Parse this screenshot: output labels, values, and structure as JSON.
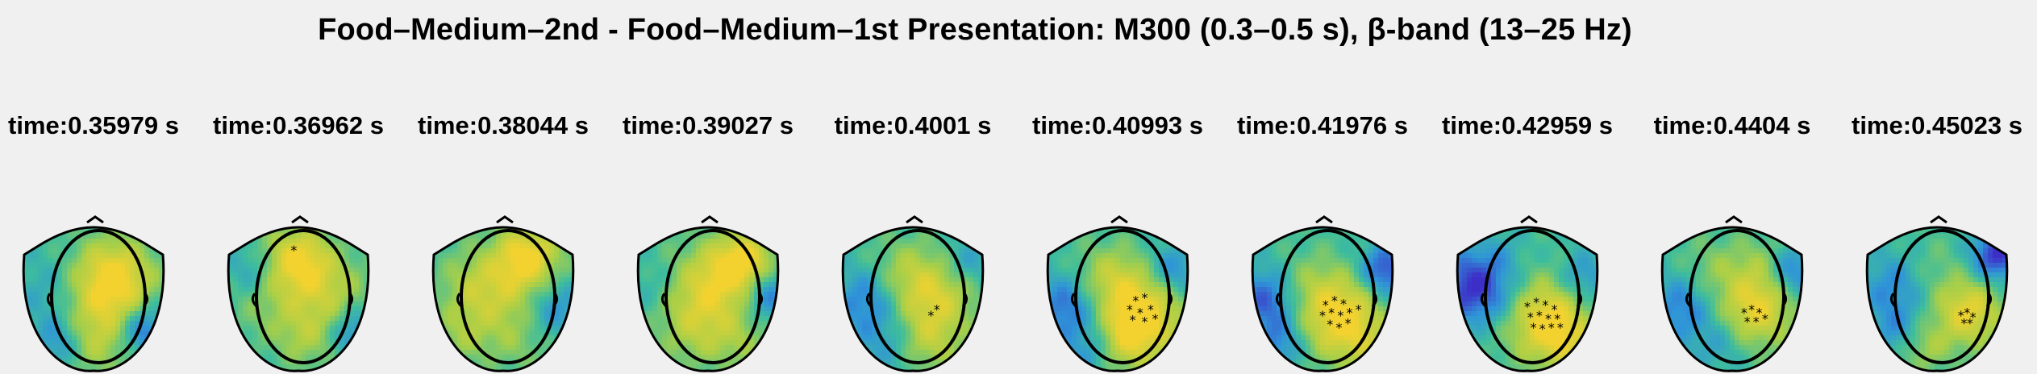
{
  "figure": {
    "title": "Food–Medium–2nd - Food–Medium–1st Presentation: M300 (0.3–0.5 s), β-band (13–25 Hz)"
  },
  "colors": {
    "background": "#f0f0f0",
    "colormap_low": "#3d2ec8",
    "colormap_mid_low": "#2f95d8",
    "colormap_mid": "#3ebd9c",
    "colormap_mid_high": "#a8cf48",
    "colormap_high": "#f3d22f",
    "outline": "#000000"
  },
  "panels": [
    {
      "label": "time:0.35979 s",
      "blobs": [
        [
          0.62,
          0.32,
          0.8,
          0.18
        ],
        [
          0.55,
          0.55,
          0.6,
          0.22
        ],
        [
          0.2,
          0.45,
          -0.3,
          0.18
        ],
        [
          0.82,
          0.7,
          -0.8,
          0.12
        ],
        [
          0.25,
          0.78,
          -0.5,
          0.12
        ],
        [
          0.5,
          0.8,
          0.3,
          0.15
        ]
      ],
      "markers": []
    },
    {
      "label": "time:0.36962 s",
      "blobs": [
        [
          0.48,
          0.22,
          0.9,
          0.16
        ],
        [
          0.7,
          0.45,
          0.5,
          0.18
        ],
        [
          0.3,
          0.5,
          0.3,
          0.2
        ],
        [
          0.85,
          0.72,
          -0.6,
          0.12
        ],
        [
          0.18,
          0.3,
          -0.4,
          0.12
        ],
        [
          0.55,
          0.75,
          0.4,
          0.15
        ]
      ],
      "markers": [
        {
          "x": 0.47,
          "y": 0.18
        }
      ]
    },
    {
      "label": "time:0.38044 s",
      "blobs": [
        [
          0.65,
          0.2,
          0.9,
          0.15
        ],
        [
          0.45,
          0.45,
          0.6,
          0.22
        ],
        [
          0.25,
          0.4,
          0.2,
          0.15
        ],
        [
          0.82,
          0.55,
          -0.5,
          0.14
        ],
        [
          0.2,
          0.75,
          0.3,
          0.14
        ],
        [
          0.6,
          0.8,
          0.2,
          0.15
        ]
      ],
      "markers": []
    },
    {
      "label": "time:0.39027 s",
      "blobs": [
        [
          0.72,
          0.25,
          1.0,
          0.15
        ],
        [
          0.48,
          0.42,
          0.7,
          0.2
        ],
        [
          0.4,
          0.7,
          0.4,
          0.18
        ],
        [
          0.88,
          0.45,
          -0.7,
          0.12
        ],
        [
          0.15,
          0.4,
          -0.2,
          0.12
        ],
        [
          0.7,
          0.78,
          0.3,
          0.14
        ]
      ],
      "markers": []
    },
    {
      "label": "time:0.4001 s",
      "blobs": [
        [
          0.62,
          0.48,
          0.8,
          0.2
        ],
        [
          0.4,
          0.3,
          0.3,
          0.16
        ],
        [
          0.18,
          0.5,
          -0.6,
          0.16
        ],
        [
          0.85,
          0.25,
          -0.4,
          0.12
        ],
        [
          0.3,
          0.8,
          -0.3,
          0.14
        ],
        [
          0.6,
          0.8,
          0.4,
          0.14
        ]
      ],
      "markers": [
        {
          "x": 0.62,
          "y": 0.62
        },
        {
          "x": 0.66,
          "y": 0.58
        }
      ]
    },
    {
      "label": "time:0.40993 s",
      "blobs": [
        [
          0.65,
          0.58,
          1.0,
          0.2
        ],
        [
          0.42,
          0.35,
          0.5,
          0.16
        ],
        [
          0.15,
          0.55,
          -0.7,
          0.16
        ],
        [
          0.85,
          0.3,
          -0.6,
          0.12
        ],
        [
          0.3,
          0.85,
          -0.4,
          0.12
        ],
        [
          0.55,
          0.78,
          0.5,
          0.15
        ]
      ],
      "markers": [
        {
          "x": 0.62,
          "y": 0.52
        },
        {
          "x": 0.68,
          "y": 0.5
        },
        {
          "x": 0.58,
          "y": 0.58
        },
        {
          "x": 0.65,
          "y": 0.6
        },
        {
          "x": 0.72,
          "y": 0.58
        },
        {
          "x": 0.6,
          "y": 0.65
        },
        {
          "x": 0.68,
          "y": 0.66
        },
        {
          "x": 0.75,
          "y": 0.64
        }
      ]
    },
    {
      "label": "time:0.41976 s",
      "blobs": [
        [
          0.6,
          0.6,
          1.0,
          0.2
        ],
        [
          0.35,
          0.4,
          0.3,
          0.16
        ],
        [
          0.12,
          0.5,
          -0.8,
          0.16
        ],
        [
          0.9,
          0.3,
          -0.9,
          0.12
        ],
        [
          0.2,
          0.8,
          -0.5,
          0.12
        ],
        [
          0.75,
          0.8,
          0.3,
          0.14
        ]
      ],
      "markers": [
        {
          "x": 0.52,
          "y": 0.55
        },
        {
          "x": 0.58,
          "y": 0.52
        },
        {
          "x": 0.64,
          "y": 0.54
        },
        {
          "x": 0.5,
          "y": 0.62
        },
        {
          "x": 0.56,
          "y": 0.6
        },
        {
          "x": 0.62,
          "y": 0.62
        },
        {
          "x": 0.68,
          "y": 0.6
        },
        {
          "x": 0.74,
          "y": 0.58
        },
        {
          "x": 0.55,
          "y": 0.68
        },
        {
          "x": 0.61,
          "y": 0.7
        },
        {
          "x": 0.67,
          "y": 0.67
        }
      ]
    },
    {
      "label": "time:0.42959 s",
      "blobs": [
        [
          0.6,
          0.62,
          1.0,
          0.2
        ],
        [
          0.3,
          0.5,
          -0.3,
          0.16
        ],
        [
          0.1,
          0.4,
          -0.9,
          0.16
        ],
        [
          0.85,
          0.35,
          -0.5,
          0.12
        ],
        [
          0.3,
          0.2,
          -0.2,
          0.12
        ],
        [
          0.75,
          0.78,
          0.4,
          0.14
        ]
      ],
      "markers": [
        {
          "x": 0.5,
          "y": 0.56
        },
        {
          "x": 0.56,
          "y": 0.53
        },
        {
          "x": 0.62,
          "y": 0.55
        },
        {
          "x": 0.68,
          "y": 0.58
        },
        {
          "x": 0.52,
          "y": 0.63
        },
        {
          "x": 0.58,
          "y": 0.62
        },
        {
          "x": 0.64,
          "y": 0.64
        },
        {
          "x": 0.7,
          "y": 0.64
        },
        {
          "x": 0.54,
          "y": 0.7
        },
        {
          "x": 0.6,
          "y": 0.71
        },
        {
          "x": 0.66,
          "y": 0.7
        },
        {
          "x": 0.72,
          "y": 0.7
        }
      ]
    },
    {
      "label": "time:0.4404 s",
      "blobs": [
        [
          0.65,
          0.55,
          0.9,
          0.18
        ],
        [
          0.35,
          0.3,
          0.3,
          0.16
        ],
        [
          0.15,
          0.55,
          -0.6,
          0.16
        ],
        [
          0.88,
          0.3,
          -0.7,
          0.12
        ],
        [
          0.4,
          0.8,
          -0.3,
          0.12
        ],
        [
          0.7,
          0.25,
          0.3,
          0.14
        ]
      ],
      "markers": [
        {
          "x": 0.58,
          "y": 0.6
        },
        {
          "x": 0.63,
          "y": 0.58
        },
        {
          "x": 0.68,
          "y": 0.6
        },
        {
          "x": 0.6,
          "y": 0.66
        },
        {
          "x": 0.66,
          "y": 0.66
        },
        {
          "x": 0.72,
          "y": 0.64
        }
      ]
    },
    {
      "label": "time:0.45023 s",
      "blobs": [
        [
          0.7,
          0.58,
          0.9,
          0.16
        ],
        [
          0.45,
          0.3,
          0.2,
          0.16
        ],
        [
          0.2,
          0.4,
          -0.5,
          0.16
        ],
        [
          0.88,
          0.2,
          -1.0,
          0.12
        ],
        [
          0.4,
          0.82,
          0.4,
          0.12
        ],
        [
          0.2,
          0.7,
          -0.4,
          0.12
        ]
      ],
      "markers": [
        {
          "x": 0.66,
          "y": 0.62
        },
        {
          "x": 0.7,
          "y": 0.6
        },
        {
          "x": 0.74,
          "y": 0.63
        },
        {
          "x": 0.68,
          "y": 0.67
        },
        {
          "x": 0.72,
          "y": 0.67
        }
      ]
    }
  ]
}
